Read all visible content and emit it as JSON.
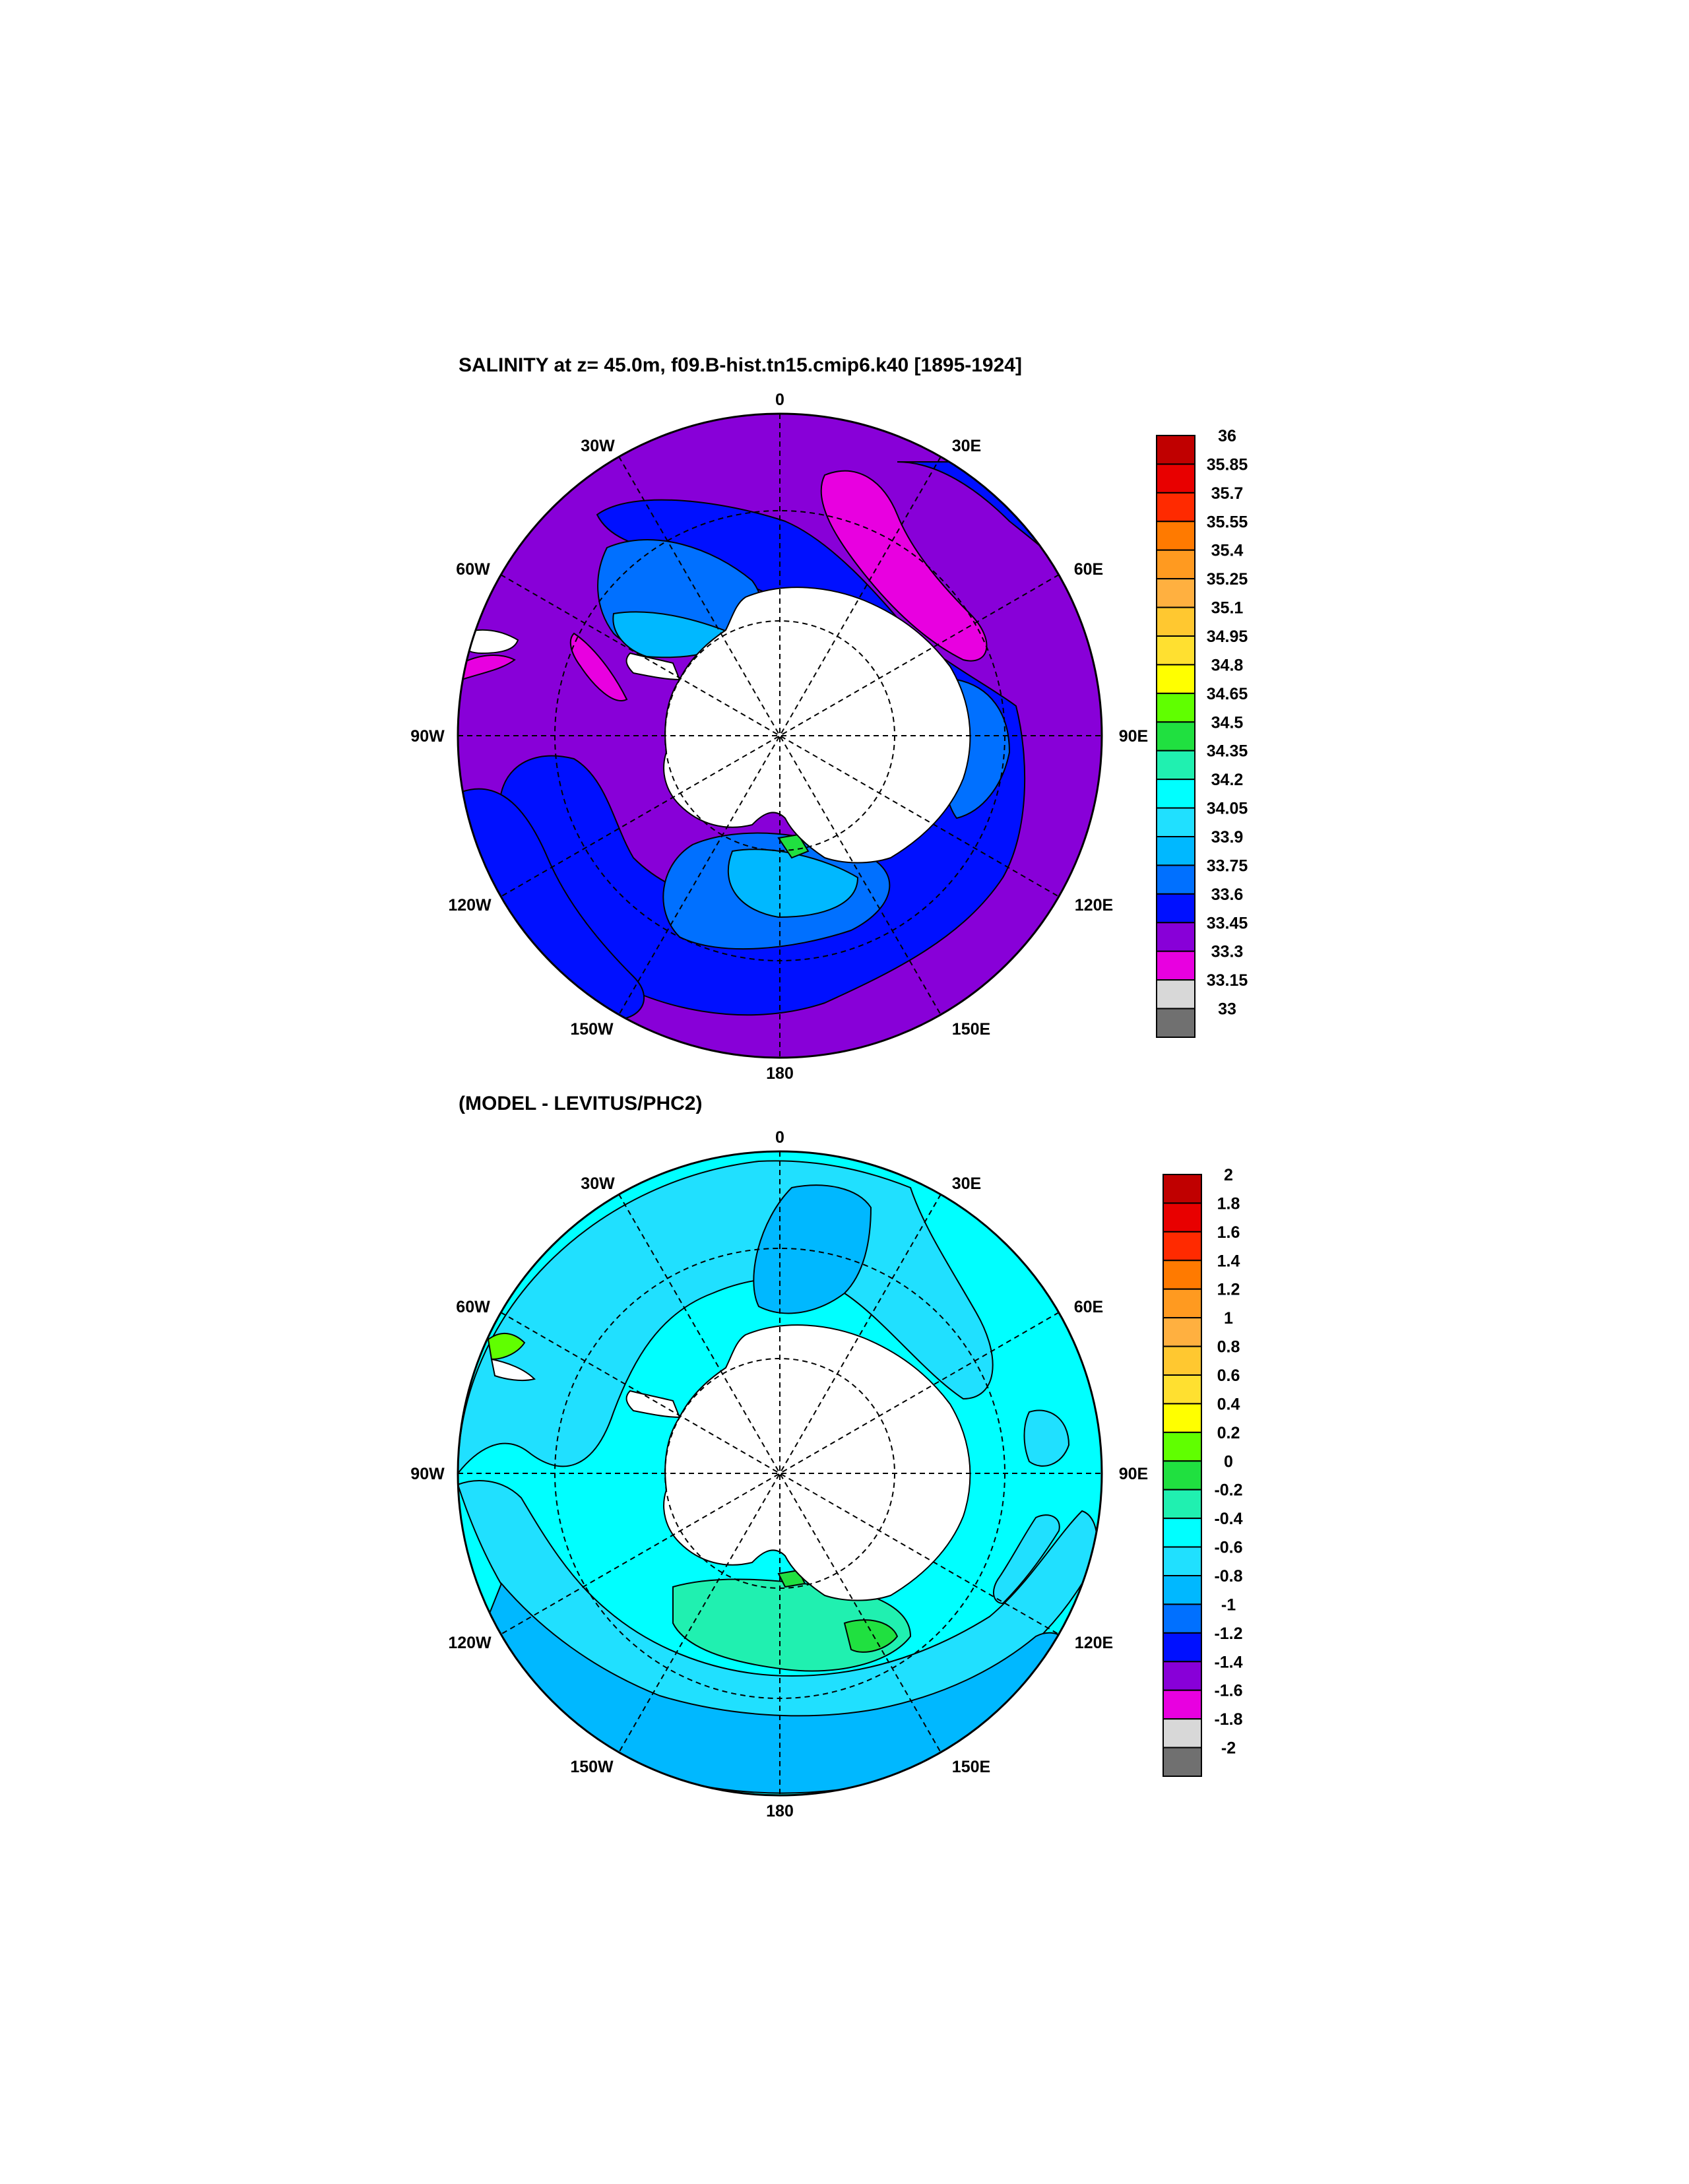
{
  "top_panel": {
    "title": "SALINITY at z=  45.0m, f09.B-hist.tn15.cmip6.k40 [1895-1924]",
    "lon_labels": [
      "0",
      "30E",
      "60E",
      "90E",
      "120E",
      "150E",
      "180",
      "150W",
      "120W",
      "90W",
      "60W",
      "30W"
    ],
    "colorbar": {
      "labels": [
        "36",
        "35.85",
        "35.7",
        "35.55",
        "35.4",
        "35.25",
        "35.1",
        "34.95",
        "34.8",
        "34.65",
        "34.5",
        "34.35",
        "34.2",
        "34.05",
        "33.9",
        "33.75",
        "33.6",
        "33.45",
        "33.3",
        "33.15",
        "33"
      ],
      "colors": [
        "#c00000",
        "#e80000",
        "#ff2a00",
        "#ff7a00",
        "#ff9a20",
        "#ffb040",
        "#ffc830",
        "#ffe030",
        "#ffff00",
        "#60ff00",
        "#20e040",
        "#20f0b0",
        "#00ffff",
        "#20e0ff",
        "#00b8ff",
        "#0070ff",
        "#0010ff",
        "#8800d8",
        "#e800e0",
        "#d8d8d8",
        "#707070"
      ]
    },
    "ocean_color": "#8800d8"
  },
  "bottom_panel": {
    "title": "(MODEL - LEVITUS/PHC2)",
    "lon_labels": [
      "0",
      "30E",
      "60E",
      "90E",
      "120E",
      "150E",
      "180",
      "150W",
      "120W",
      "90W",
      "60W",
      "30W"
    ],
    "colorbar": {
      "labels": [
        "2",
        "1.8",
        "1.6",
        "1.4",
        "1.2",
        "1",
        "0.8",
        "0.6",
        "0.4",
        "0.2",
        "0",
        "-0.2",
        "-0.4",
        "-0.6",
        "-0.8",
        "-1",
        "-1.2",
        "-1.4",
        "-1.6",
        "-1.8",
        "-2"
      ],
      "colors": [
        "#c00000",
        "#e80000",
        "#ff2a00",
        "#ff7a00",
        "#ff9a20",
        "#ffb040",
        "#ffc830",
        "#ffe030",
        "#ffff00",
        "#60ff00",
        "#20e040",
        "#20f0b0",
        "#00ffff",
        "#20e0ff",
        "#00b8ff",
        "#0070ff",
        "#0010ff",
        "#8800d8",
        "#e800e0",
        "#d8d8d8",
        "#707070"
      ]
    },
    "ocean_color": "#00ffff"
  }
}
